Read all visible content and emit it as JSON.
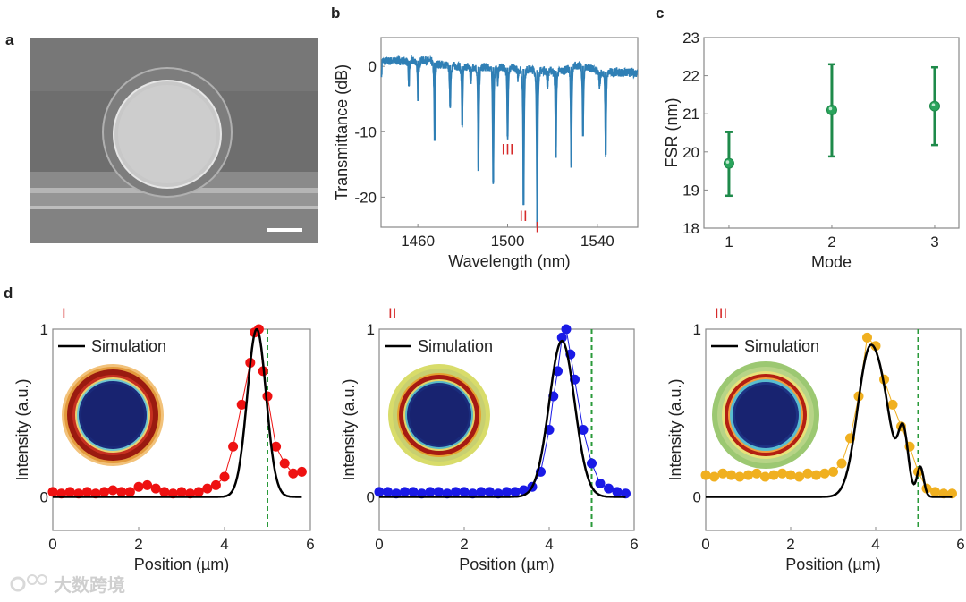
{
  "panel_labels": {
    "a": "a",
    "b": "b",
    "c": "c",
    "d": "d"
  },
  "watermark": "大数跨境",
  "colors": {
    "spectrum": "#2f7fb5",
    "fsr": "#1e8a4a",
    "mode_label": "#d62a2a",
    "mode_I": "#ee1111",
    "mode_II": "#1a1ae6",
    "mode_III": "#f0b020",
    "simulation": "#000000",
    "dashed": "#2a9a3a"
  },
  "chart_data": [
    {
      "id": "b",
      "type": "line",
      "title": "",
      "xlabel": "Wavelength (nm)",
      "ylabel": "Transmittance (dB)",
      "xlim": [
        1443.6,
        1558
      ],
      "ylim": [
        -24.6,
        4.4
      ],
      "xticks": [
        1460,
        1500,
        1540
      ],
      "yticks": [
        0,
        -10,
        -20
      ],
      "baseline": [
        [
          1444,
          0.8
        ],
        [
          1465,
          0.9
        ],
        [
          1470,
          0.3
        ],
        [
          1480,
          0.0
        ],
        [
          1500,
          -0.2
        ],
        [
          1515,
          -0.6
        ],
        [
          1525,
          -0.7
        ],
        [
          1530,
          0.2
        ],
        [
          1535,
          0.0
        ],
        [
          1540,
          -0.8
        ],
        [
          1558,
          -1.0
        ]
      ],
      "dips": [
        {
          "wavelength": 1456.0,
          "depth": -3.0
        },
        {
          "wavelength": 1460.1,
          "depth": -5.3
        },
        {
          "wavelength": 1467.5,
          "depth": -11.4
        },
        {
          "wavelength": 1474.4,
          "depth": -6.2
        },
        {
          "wavelength": 1479.8,
          "depth": -9.0
        },
        {
          "wavelength": 1483.6,
          "depth": -2.7
        },
        {
          "wavelength": 1487.0,
          "depth": -16.0
        },
        {
          "wavelength": 1493.6,
          "depth": -17.8
        },
        {
          "wavelength": 1495.6,
          "depth": -2.4
        },
        {
          "wavelength": 1500.0,
          "depth": -10.7
        },
        {
          "wavelength": 1504.6,
          "depth": -1.8
        },
        {
          "wavelength": 1507.1,
          "depth": -21.2
        },
        {
          "wavelength": 1513.2,
          "depth": -24.5
        },
        {
          "wavelength": 1517.8,
          "depth": -3.1
        },
        {
          "wavelength": 1521.5,
          "depth": -14.0
        },
        {
          "wavelength": 1528.4,
          "depth": -15.5
        },
        {
          "wavelength": 1533.6,
          "depth": -10.7
        },
        {
          "wavelength": 1541.0,
          "depth": -3.0
        },
        {
          "wavelength": 1543.7,
          "depth": -13.5
        }
      ],
      "annotations": [
        {
          "text": "III",
          "x": 1500,
          "y": -12.6
        },
        {
          "text": "II",
          "x": 1507,
          "y": -22.8
        },
        {
          "text": "I",
          "x": 1513.2,
          "y": -24.5
        }
      ]
    },
    {
      "id": "c",
      "type": "scatter",
      "xlabel": "Mode",
      "ylabel": "FSR (nm)",
      "xlim": [
        0.757,
        3.235
      ],
      "ylim": [
        18,
        23
      ],
      "xticks": [
        1,
        2,
        3
      ],
      "yticks": [
        18,
        19,
        20,
        21,
        22,
        23
      ],
      "points": [
        {
          "mode": 1,
          "fsr": 19.7,
          "err_low": 18.85,
          "err_high": 20.52
        },
        {
          "mode": 2,
          "fsr": 21.1,
          "err_low": 19.88,
          "err_high": 22.3
        },
        {
          "mode": 3,
          "fsr": 21.2,
          "err_low": 20.18,
          "err_high": 22.22
        }
      ]
    },
    {
      "id": "d1",
      "type": "scatter",
      "mode_label": "I",
      "xlabel": "Position (µm)",
      "ylabel": "Intensity (a.u.)",
      "xlim": [
        0,
        6
      ],
      "ylim": [
        -0.2,
        1
      ],
      "xticks": [
        0,
        2,
        4,
        6
      ],
      "yticks": [
        0,
        1
      ],
      "legend": "Simulation",
      "dashed_x": 5.0,
      "x": [
        0,
        0.2,
        0.4,
        0.6,
        0.8,
        1.0,
        1.2,
        1.4,
        1.6,
        1.8,
        2.0,
        2.2,
        2.4,
        2.6,
        2.8,
        3.0,
        3.2,
        3.4,
        3.6,
        3.8,
        4.0,
        4.2,
        4.4,
        4.6,
        4.7,
        4.8,
        4.9,
        5.0,
        5.2,
        5.4,
        5.6,
        5.8
      ],
      "values": [
        0.03,
        0.02,
        0.03,
        0.02,
        0.03,
        0.02,
        0.03,
        0.04,
        0.03,
        0.03,
        0.06,
        0.07,
        0.05,
        0.03,
        0.02,
        0.03,
        0.02,
        0.03,
        0.05,
        0.07,
        0.12,
        0.3,
        0.55,
        0.8,
        0.98,
        1.0,
        0.75,
        0.6,
        0.3,
        0.2,
        0.14,
        0.15
      ],
      "simulation_peaks": [
        {
          "center": 4.75,
          "amplitude": 1.0,
          "width": 0.22
        }
      ]
    },
    {
      "id": "d2",
      "type": "scatter",
      "mode_label": "II",
      "xlabel": "Position (µm)",
      "ylabel": "Intensity (a.u.)",
      "xlim": [
        0,
        6
      ],
      "ylim": [
        -0.2,
        1
      ],
      "xticks": [
        0,
        2,
        4,
        6
      ],
      "yticks": [
        0,
        1
      ],
      "legend": "Simulation",
      "dashed_x": 5.0,
      "x": [
        0,
        0.2,
        0.4,
        0.6,
        0.8,
        1.0,
        1.2,
        1.4,
        1.6,
        1.8,
        2.0,
        2.2,
        2.4,
        2.6,
        2.8,
        3.0,
        3.2,
        3.4,
        3.6,
        3.8,
        4.0,
        4.1,
        4.2,
        4.3,
        4.4,
        4.5,
        4.6,
        4.8,
        5.0,
        5.2,
        5.4,
        5.6,
        5.8
      ],
      "values": [
        0.03,
        0.03,
        0.02,
        0.03,
        0.03,
        0.02,
        0.03,
        0.03,
        0.02,
        0.03,
        0.03,
        0.02,
        0.03,
        0.03,
        0.02,
        0.03,
        0.03,
        0.04,
        0.06,
        0.15,
        0.4,
        0.6,
        0.75,
        0.95,
        1.0,
        0.85,
        0.7,
        0.4,
        0.2,
        0.08,
        0.05,
        0.03,
        0.02
      ],
      "simulation_peaks": [
        {
          "center": 4.3,
          "amplitude": 0.93,
          "width": 0.3
        }
      ]
    },
    {
      "id": "d3",
      "type": "scatter",
      "mode_label": "III",
      "xlabel": "Position (µm)",
      "ylabel": "Intensity (a.u.)",
      "xlim": [
        0,
        6
      ],
      "ylim": [
        -0.2,
        1
      ],
      "xticks": [
        0,
        2,
        4,
        6
      ],
      "yticks": [
        0,
        1
      ],
      "legend": "Simulation",
      "dashed_x": 5.0,
      "x": [
        0,
        0.2,
        0.4,
        0.6,
        0.8,
        1.0,
        1.2,
        1.4,
        1.6,
        1.8,
        2.0,
        2.2,
        2.4,
        2.6,
        2.8,
        3.0,
        3.2,
        3.4,
        3.6,
        3.8,
        4.0,
        4.2,
        4.4,
        4.6,
        4.8,
        5.0,
        5.2,
        5.4,
        5.6,
        5.8
      ],
      "values": [
        0.13,
        0.12,
        0.14,
        0.13,
        0.12,
        0.13,
        0.14,
        0.12,
        0.13,
        0.14,
        0.13,
        0.12,
        0.14,
        0.13,
        0.14,
        0.15,
        0.2,
        0.35,
        0.6,
        0.95,
        0.9,
        0.7,
        0.55,
        0.42,
        0.3,
        0.15,
        0.05,
        0.03,
        0.02,
        0.02
      ],
      "simulation_peaks": [
        {
          "center": 3.85,
          "amplitude": 0.86,
          "width": 0.28
        },
        {
          "center": 4.65,
          "amplitude": 0.38,
          "width": 0.12
        },
        {
          "center": 5.05,
          "amplitude": 0.18,
          "width": 0.08
        },
        {
          "center": 4.25,
          "amplitude": 0.28,
          "width": 0.2
        }
      ]
    }
  ]
}
